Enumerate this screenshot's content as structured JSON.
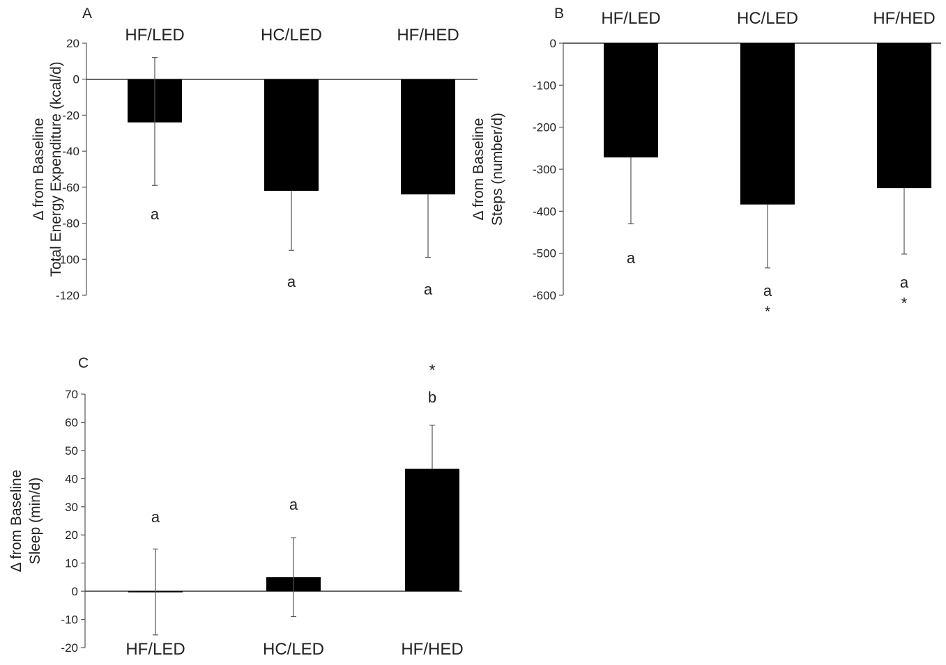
{
  "chart_data": [
    {
      "panel": "A",
      "type": "bar",
      "categories": [
        "HF/LED",
        "HC/LED",
        "HF/HED"
      ],
      "values": [
        -24,
        -62,
        -64
      ],
      "error_plus": [
        12,
        -62,
        -64
      ],
      "error_minus": [
        -59,
        -95,
        -99
      ],
      "sig_labels": [
        [
          "a"
        ],
        [
          "a"
        ],
        [
          "a"
        ]
      ],
      "ylabel": [
        "Δ from Baseline",
        "Total Energy Expenditure  (kcal/d)"
      ],
      "ylim": [
        -120,
        20
      ],
      "yticks": [
        "20",
        "0",
        "-20",
        "-40",
        "-60",
        "-80",
        "-100",
        "-120"
      ],
      "category_position": "top",
      "color": "#000000"
    },
    {
      "panel": "B",
      "type": "bar",
      "categories": [
        "HF/LED",
        "HC/LED",
        "HF/HED"
      ],
      "values": [
        -272,
        -384,
        -345
      ],
      "error_plus": [
        -272,
        -384,
        -345
      ],
      "error_minus": [
        -430,
        -535,
        -502
      ],
      "sig_labels": [
        [
          "a"
        ],
        [
          "a",
          "*"
        ],
        [
          "a",
          "*"
        ]
      ],
      "ylabel": [
        "Δ from Baseline",
        "Steps (number/d)"
      ],
      "ylim": [
        -600,
        0
      ],
      "yticks": [
        "0",
        "-100",
        "-200",
        "-300",
        "-400",
        "-500",
        "-600"
      ],
      "category_position": "top",
      "color": "#000000"
    },
    {
      "panel": "C",
      "type": "bar",
      "categories": [
        "HF/LED",
        "HC/LED",
        "HF/HED"
      ],
      "values": [
        0,
        5,
        43.5
      ],
      "error_plus": [
        15,
        19,
        59
      ],
      "error_minus": [
        -15.5,
        -9,
        43.5
      ],
      "sig_labels": [
        [
          "a"
        ],
        [
          "a"
        ],
        [
          "b",
          "*"
        ]
      ],
      "ylabel": [
        "Δ from Baseline",
        "Sleep (min/d)"
      ],
      "ylim": [
        -20,
        70
      ],
      "yticks": [
        "70",
        "60",
        "50",
        "40",
        "30",
        "20",
        "10",
        "0",
        "-10",
        "-20"
      ],
      "category_position": "bottom",
      "color": "#000000"
    }
  ]
}
